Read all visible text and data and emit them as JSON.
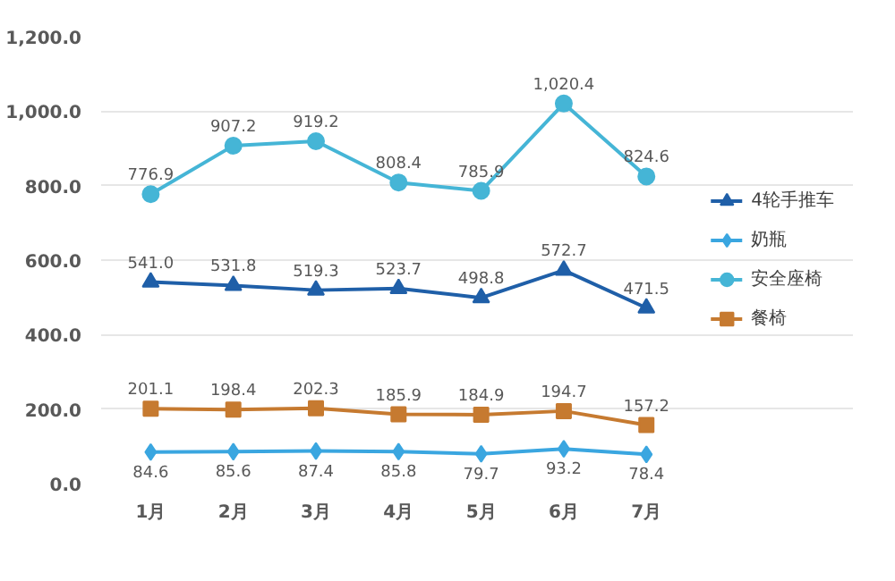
{
  "chart_data": {
    "type": "line",
    "categories": [
      "1月",
      "2月",
      "3月",
      "4月",
      "5月",
      "6月",
      "7月"
    ],
    "series": [
      {
        "name": "4轮手推车",
        "color": "#1f5fa8",
        "marker": "triangle",
        "values": [
          541.0,
          531.8,
          519.3,
          523.7,
          498.8,
          572.7,
          471.5
        ],
        "value_labels": [
          "541.0",
          "531.8",
          "519.3",
          "523.7",
          "498.8",
          "572.7",
          "471.5"
        ]
      },
      {
        "name": "奶瓶",
        "color": "#3aa6e0",
        "marker": "diamond",
        "values": [
          84.6,
          85.6,
          87.4,
          85.8,
          79.7,
          93.2,
          78.4
        ],
        "value_labels": [
          "84.6",
          "85.6",
          "87.4",
          "85.8",
          "79.7",
          "93.2",
          "78.4"
        ]
      },
      {
        "name": "安全座椅",
        "color": "#45b5d6",
        "marker": "circle",
        "values": [
          776.9,
          907.2,
          919.2,
          808.4,
          785.9,
          1020.4,
          824.6
        ],
        "value_labels": [
          "776.9",
          "907.2",
          "919.2",
          "808.4",
          "785.9",
          "1,020.4",
          "824.6"
        ]
      },
      {
        "name": "餐椅",
        "color": "#c67a30",
        "marker": "square",
        "values": [
          201.1,
          198.4,
          202.3,
          185.9,
          184.9,
          194.7,
          157.2
        ],
        "value_labels": [
          "201.1",
          "198.4",
          "202.3",
          "185.9",
          "184.9",
          "194.7",
          "157.2"
        ]
      }
    ],
    "ylim": [
      0,
      1200
    ],
    "yticks": [
      {
        "value": 0,
        "label": "0.0"
      },
      {
        "value": 200,
        "label": "200.0"
      },
      {
        "value": 400,
        "label": "400.0"
      },
      {
        "value": 600,
        "label": "600.0"
      },
      {
        "value": 800,
        "label": "800.0"
      },
      {
        "value": 1000,
        "label": "1,000.0"
      },
      {
        "value": 1200,
        "label": "1,200.0"
      }
    ],
    "grid": "y",
    "legend": "right"
  }
}
